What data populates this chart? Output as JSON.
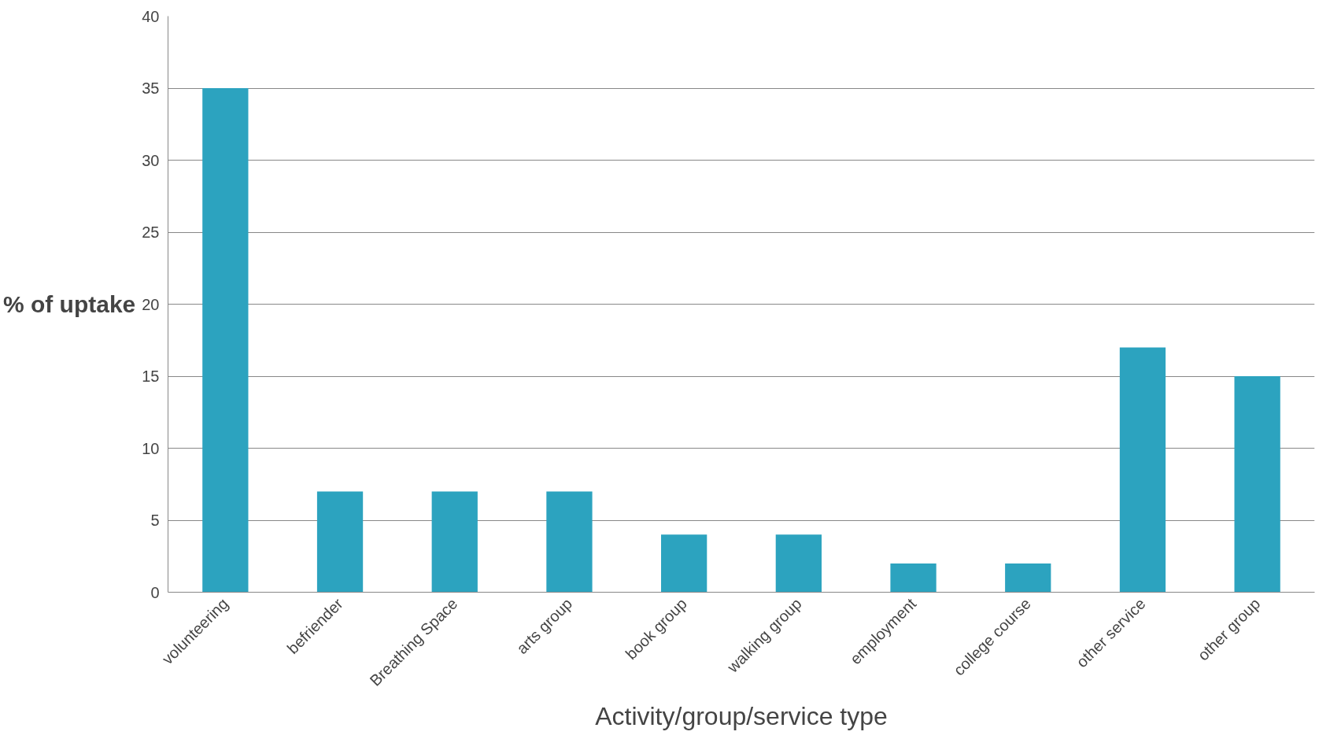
{
  "chart_data": {
    "type": "bar",
    "xlabel": "Activity/group/service type",
    "ylabel": "% of uptake",
    "categories": [
      "volunteering",
      "befriender",
      "Breathing Space",
      "arts group",
      "book group",
      "walking group",
      "employment",
      "college course",
      "other service",
      "other group"
    ],
    "values": [
      35,
      7,
      7,
      7,
      4,
      4,
      2,
      2,
      17,
      15
    ],
    "color": "#2ca3bf",
    "ylim": [
      0,
      40
    ],
    "yticks": [
      0,
      5,
      10,
      15,
      20,
      25,
      30,
      35,
      40
    ],
    "grid": "y"
  }
}
